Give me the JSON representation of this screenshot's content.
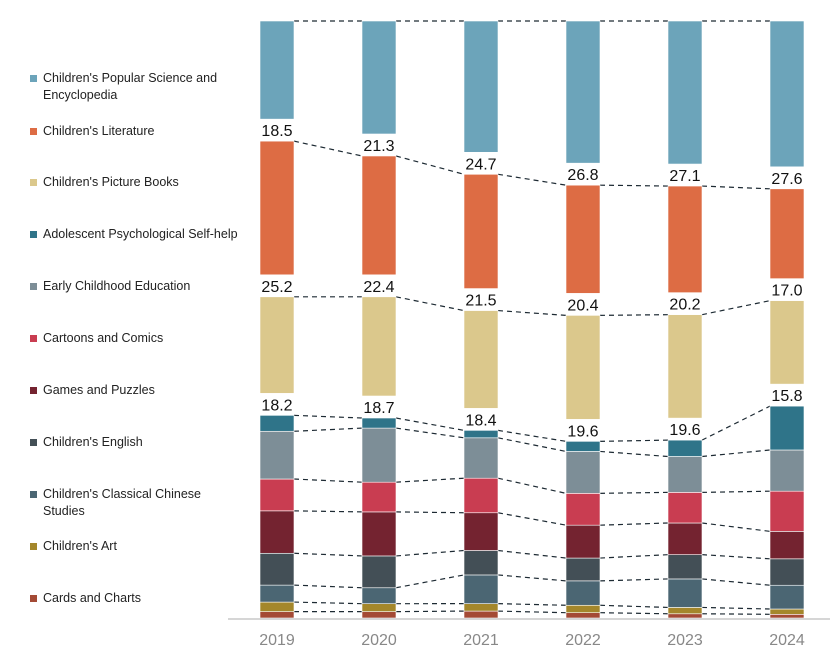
{
  "chart_data": {
    "type": "stacked-bar",
    "title": "",
    "xlabel": "",
    "ylabel": "",
    "categories": [
      "2019",
      "2020",
      "2021",
      "2022",
      "2023",
      "2024"
    ],
    "ylim": [
      0,
      100
    ],
    "series": [
      {
        "name": "Cards and Charts",
        "color": "#a44a35",
        "values": [
          1.2,
          1.2,
          1.3,
          1.0,
          0.8,
          0.7
        ]
      },
      {
        "name": "Children's Art",
        "color": "#a4872b",
        "values": [
          1.8,
          1.5,
          1.4,
          1.4,
          1.2,
          1.0
        ]
      },
      {
        "name": "Children's Classical Chinese Studies",
        "color": "#4b6673",
        "values": [
          3.2,
          3.0,
          5.4,
          4.6,
          5.4,
          4.5
        ]
      },
      {
        "name": "Children's English",
        "color": "#434f56",
        "values": [
          6.0,
          6.0,
          4.6,
          4.3,
          4.6,
          5.0
        ]
      },
      {
        "name": "Games and Puzzles",
        "color": "#742330",
        "values": [
          8.0,
          8.3,
          7.1,
          6.2,
          6.0,
          5.2
        ]
      },
      {
        "name": "Cartoons and Comics",
        "color": "#c93d51",
        "values": [
          6.0,
          5.6,
          6.5,
          6.0,
          5.8,
          7.6
        ]
      },
      {
        "name": "Early Childhood Education",
        "color": "#7d8e97",
        "values": [
          9.0,
          10.2,
          7.6,
          7.9,
          6.8,
          7.8
        ]
      },
      {
        "name": "Adolescent Psychological Self-help",
        "color": "#2f7489",
        "values": [
          3.0,
          1.9,
          1.4,
          1.9,
          3.1,
          8.3
        ]
      },
      {
        "name": "Children's Picture Books",
        "color": "#dbc88c",
        "values": [
          18.2,
          18.7,
          18.4,
          19.6,
          19.6,
          15.8
        ]
      },
      {
        "name": "Children's Literature",
        "color": "#dd6c44",
        "values": [
          25.2,
          22.4,
          21.5,
          20.4,
          20.2,
          17.0
        ]
      },
      {
        "name": "Children's Popular Science and Encyclopedia",
        "color": "#6ca4ba",
        "values": [
          18.5,
          21.3,
          24.7,
          26.8,
          27.1,
          27.6
        ]
      }
    ],
    "data_labels": {
      "Children's Popular Science and Encyclopedia": [
        "18.5",
        "21.3",
        "24.7",
        "26.8",
        "27.1",
        "27.6"
      ],
      "Children's Literature": [
        "25.2",
        "22.4",
        "21.5",
        "20.4",
        "20.2",
        "17.0"
      ],
      "Children's Picture Books": [
        "18.2",
        "18.7",
        "18.4",
        "19.6",
        "19.6",
        "15.8"
      ]
    },
    "legend_order": [
      "Children's Popular Science and Encyclopedia",
      "Children's Literature",
      "Children's Picture Books",
      "Adolescent Psychological Self-help",
      "Early Childhood Education",
      "Cartoons and Comics",
      "Games and Puzzles",
      "Children's English",
      "Children's Classical Chinese Studies",
      "Children's Art",
      "Cards and Charts"
    ],
    "legend_position": "left",
    "connectors": "dashed",
    "grid": false
  }
}
